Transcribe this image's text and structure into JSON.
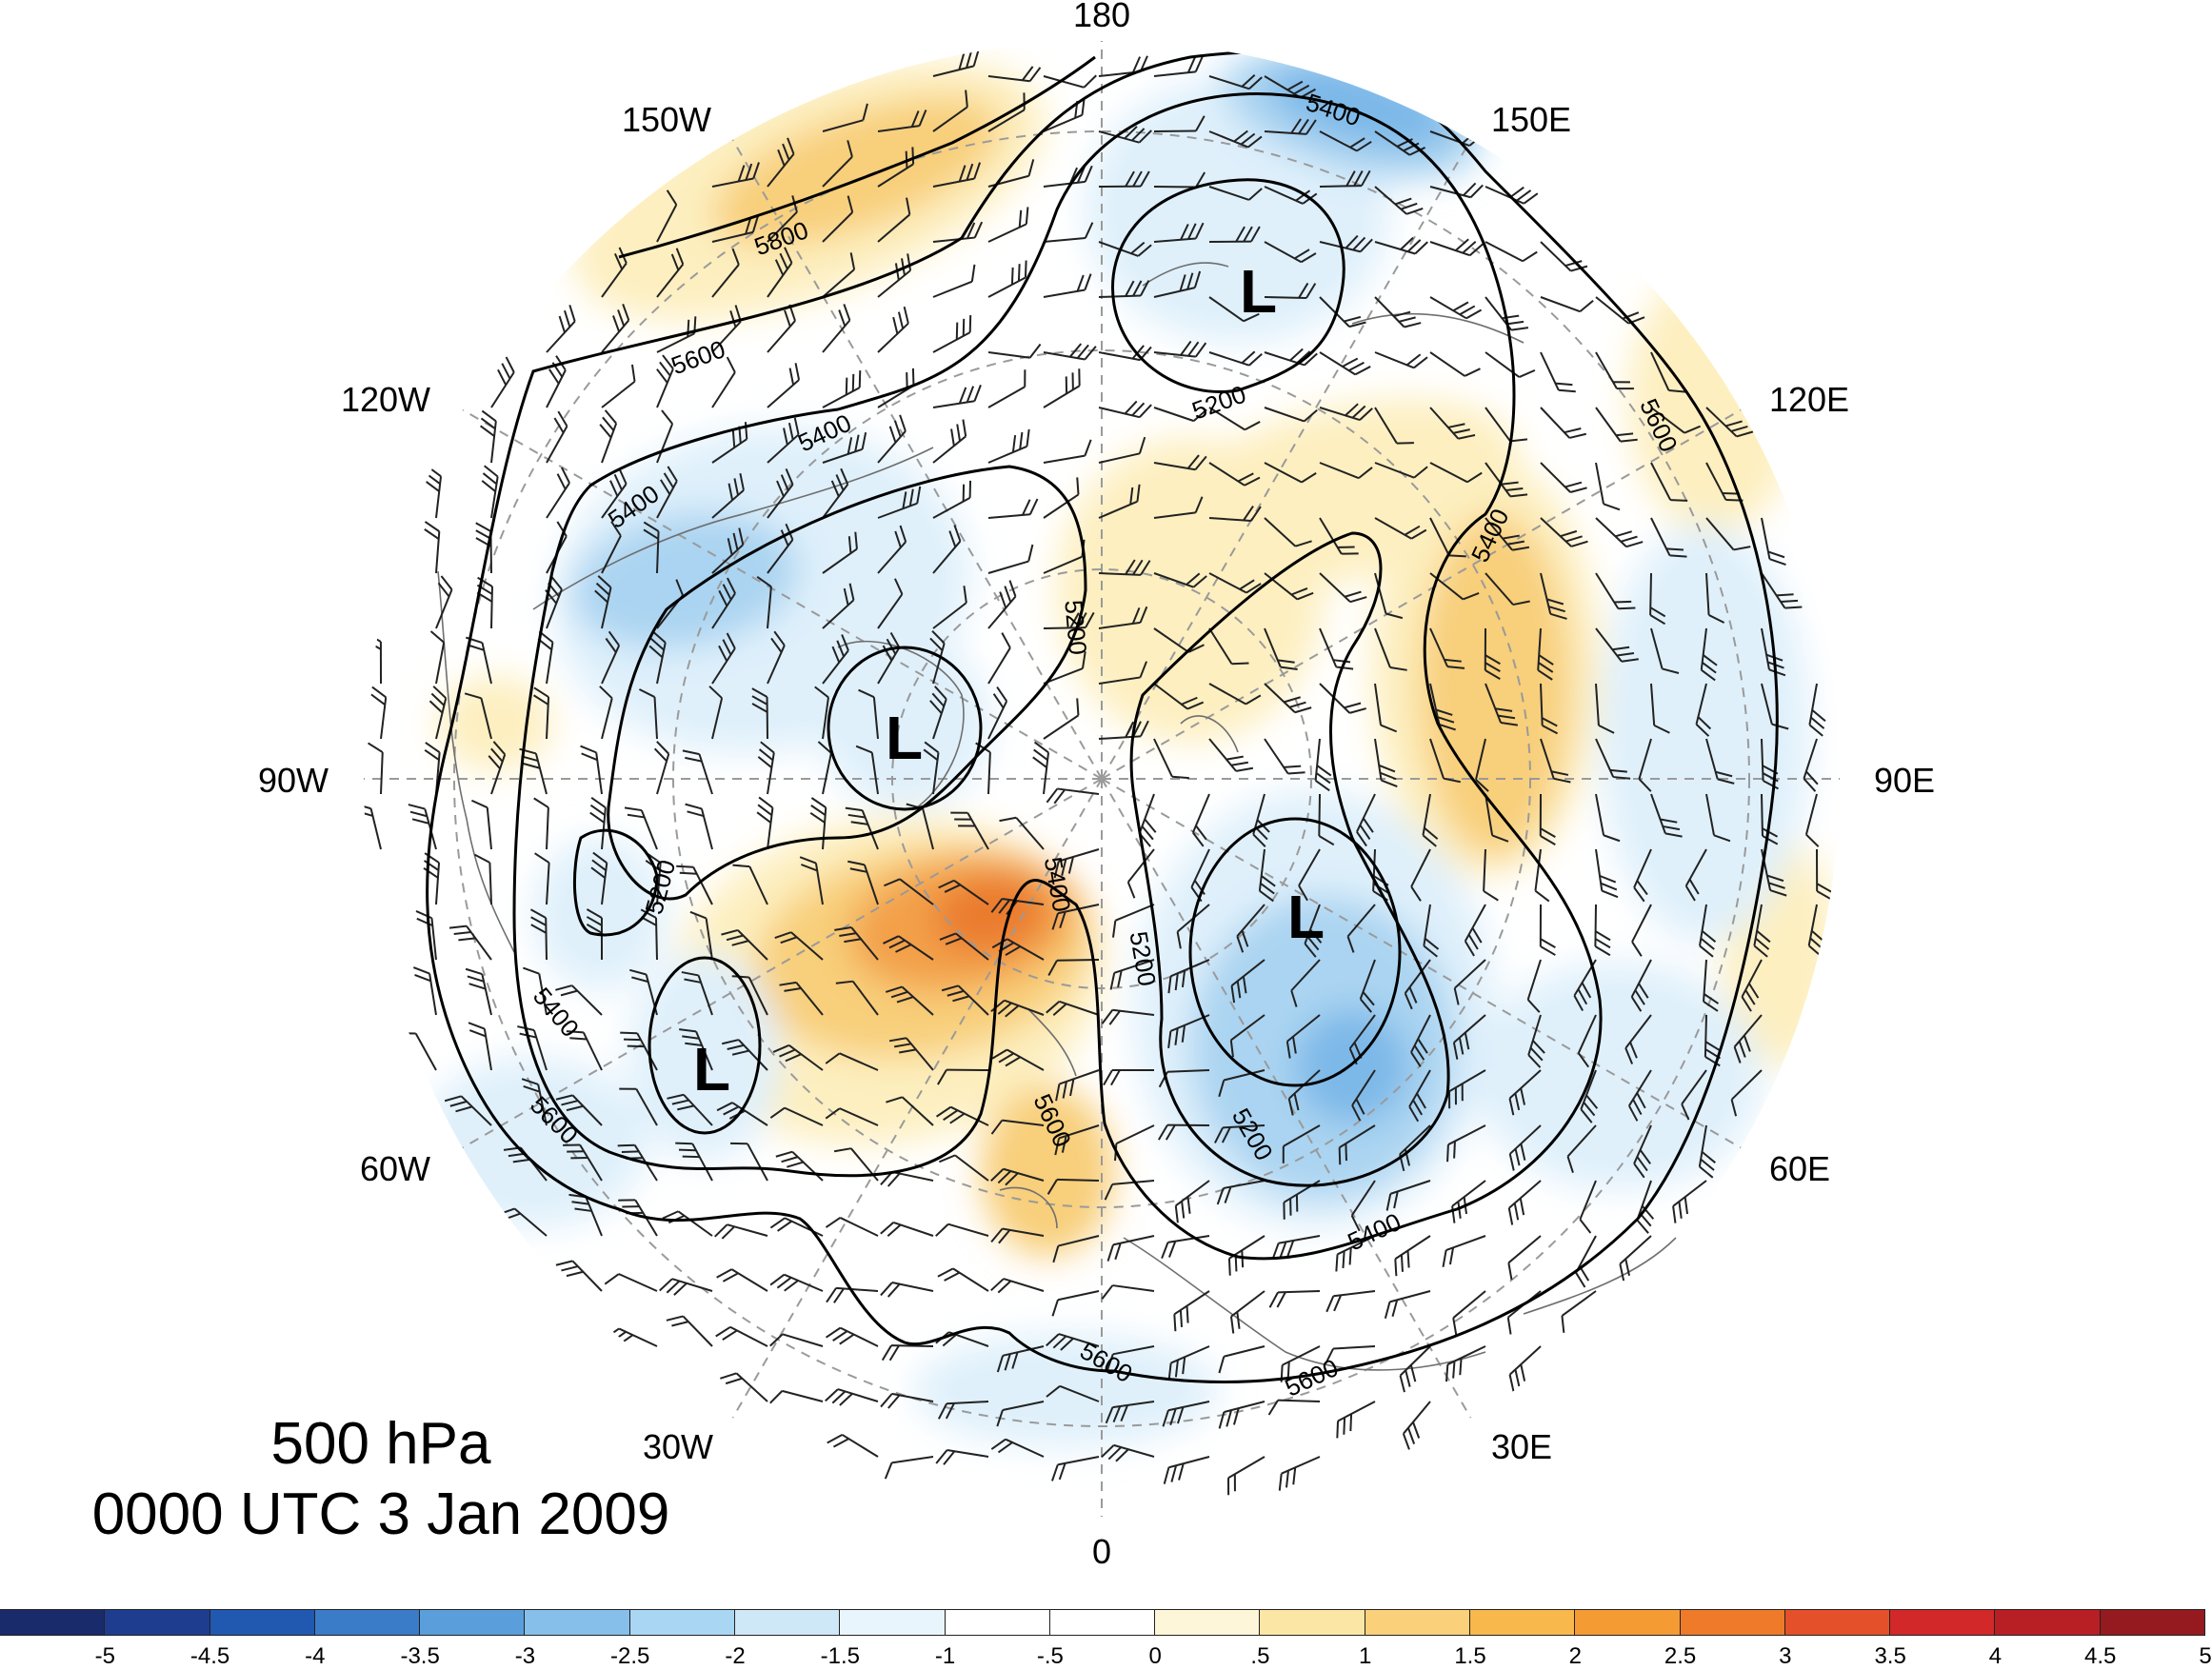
{
  "map": {
    "projection": "north polar stereographic",
    "level_label": "500 hPa",
    "time_label": "0000 UTC 3 Jan 2009",
    "longitude_labels": {
      "lon_180": "180",
      "lon_150w": "150W",
      "lon_150e": "150E",
      "lon_120w": "120W",
      "lon_120e": "120E",
      "lon_90w": "90W",
      "lon_90e": "90E",
      "lon_60w": "60W",
      "lon_60e": "60E",
      "lon_30w": "30W",
      "lon_30e": "30E",
      "lon_0": "0"
    },
    "contour_labels": {
      "c5800": "5800",
      "c5600": "5600",
      "c5400": "5400",
      "c5200": "5200"
    },
    "low_symbol": "L",
    "colors": {
      "warm_light": "#fdefc0",
      "warm_mid": "#f8cf7a",
      "warm_strong": "#f3a049",
      "warm_core": "#ea7a2d",
      "cold_light": "#dff0fb",
      "cold_mid": "#aad4f1",
      "cold_strong": "#7bb8e8"
    }
  },
  "colorbar": {
    "colors": [
      "#1a2b6b",
      "#1f3d8f",
      "#2158b0",
      "#3a7cc8",
      "#5a9fdc",
      "#86c0ea",
      "#a9d6f3",
      "#cfe8f8",
      "#e9f5fc",
      "#ffffff",
      "#ffffff",
      "#fdf6d8",
      "#fbe6a6",
      "#fad07a",
      "#f8b84b",
      "#f59b34",
      "#ee7a2a",
      "#e4502a",
      "#d2282a",
      "#b81f25",
      "#951a1f"
    ],
    "tick_labels": [
      "-5",
      "-4.5",
      "-4",
      "-3.5",
      "-3",
      "-2.5",
      "-2",
      "-1.5",
      "-1",
      "-.5",
      "0",
      ".5",
      "1",
      "1.5",
      "2",
      "2.5",
      "3",
      "3.5",
      "4",
      "4.5",
      "5"
    ]
  }
}
